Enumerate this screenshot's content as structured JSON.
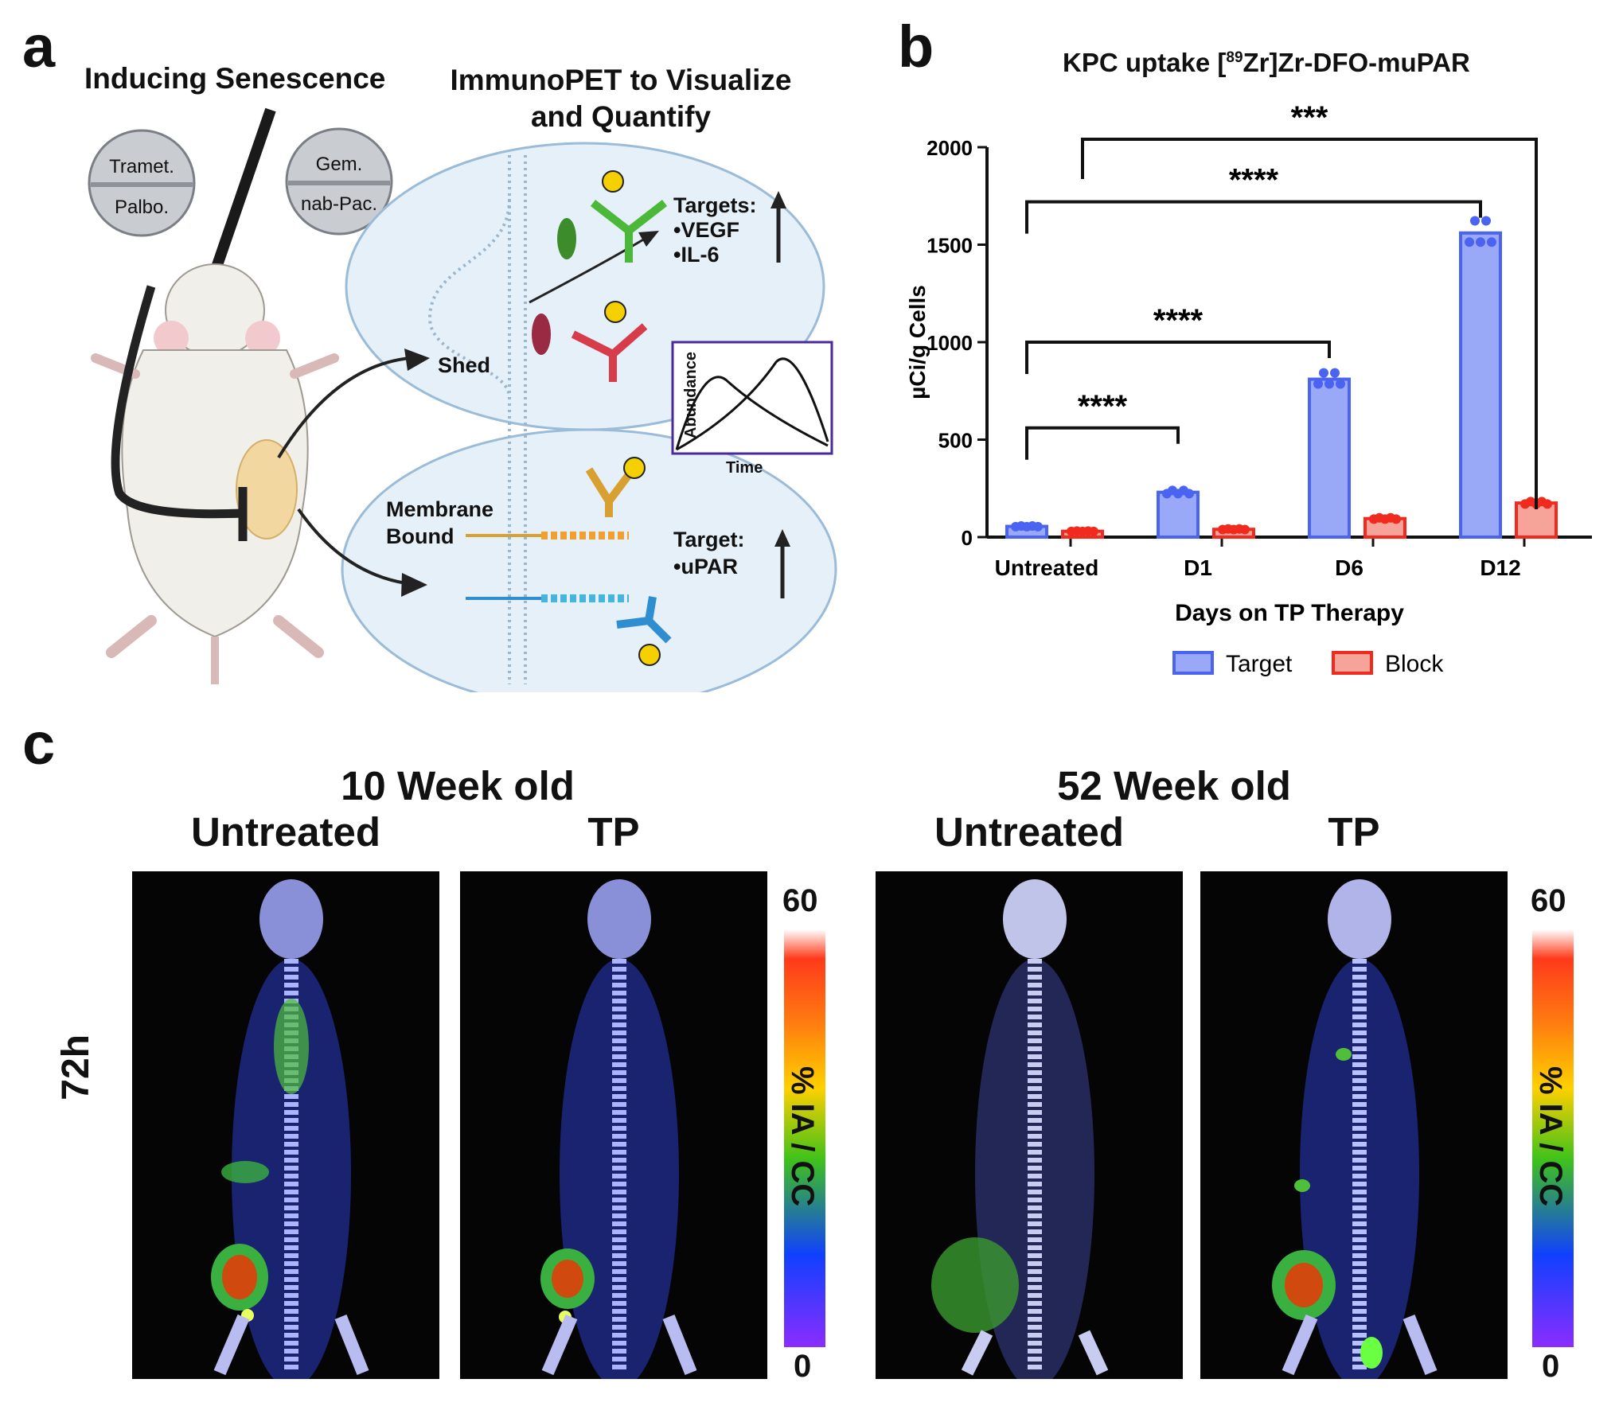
{
  "panel_a": {
    "letter": "a",
    "title_left": "Inducing Senescence",
    "title_right_line1": "ImmunoPET to Visualize",
    "title_right_line2": "and Quantify",
    "pill_left_top": "Tramet.",
    "pill_left_bottom": "Palbo.",
    "pill_right_top": "Gem.",
    "pill_right_bottom": "nab-Pac.",
    "targets_label": "Targets:",
    "target_1": "•VEGF",
    "target_2": "•IL-6",
    "shed_label": "Shed",
    "membrane_line1": "Membrane",
    "membrane_line2": "Bound",
    "target_label": "Target:",
    "target_3": "•uPAR",
    "inset_ylabel": "Abundance",
    "inset_xlabel": "Time"
  },
  "panel_b": {
    "letter": "b",
    "title_pre": "KPC uptake [",
    "title_sup": "89",
    "title_post": "Zr]Zr-DFO-muPAR",
    "sig": [
      "****",
      "****",
      "****",
      "***"
    ]
  },
  "chart_data": {
    "type": "bar",
    "title": "KPC uptake [89Zr]Zr-DFO-muPAR",
    "xlabel": "Days on TP Therapy",
    "ylabel": "µCi/g Cells",
    "ylim": [
      0,
      2000
    ],
    "yticks": [
      0,
      500,
      1000,
      1500,
      2000
    ],
    "categories": [
      "Untreated",
      "D1",
      "D6",
      "D12"
    ],
    "series": [
      {
        "name": "Target",
        "color": "#4a63f0",
        "values": [
          55,
          230,
          810,
          1560
        ]
      },
      {
        "name": "Block",
        "color": "#f02a1e",
        "values": [
          30,
          40,
          95,
          175
        ]
      }
    ],
    "significance": [
      {
        "from": "Untreated",
        "to": "D1",
        "label": "****"
      },
      {
        "from": "Untreated",
        "to": "D6",
        "label": "****"
      },
      {
        "from": "Untreated",
        "to": "D12",
        "label": "****"
      },
      {
        "from": "Untreated",
        "to": "D12 Block",
        "label": "***"
      }
    ]
  },
  "panel_c": {
    "letter": "c",
    "group1_title": "10 Week old",
    "group2_title": "52 Week old",
    "col1": "Untreated",
    "col2": "TP",
    "col3": "Untreated",
    "col4": "TP",
    "row_label": "72h",
    "scale_max": "60",
    "scale_min": "0",
    "scale_label": "% IA / CC"
  }
}
